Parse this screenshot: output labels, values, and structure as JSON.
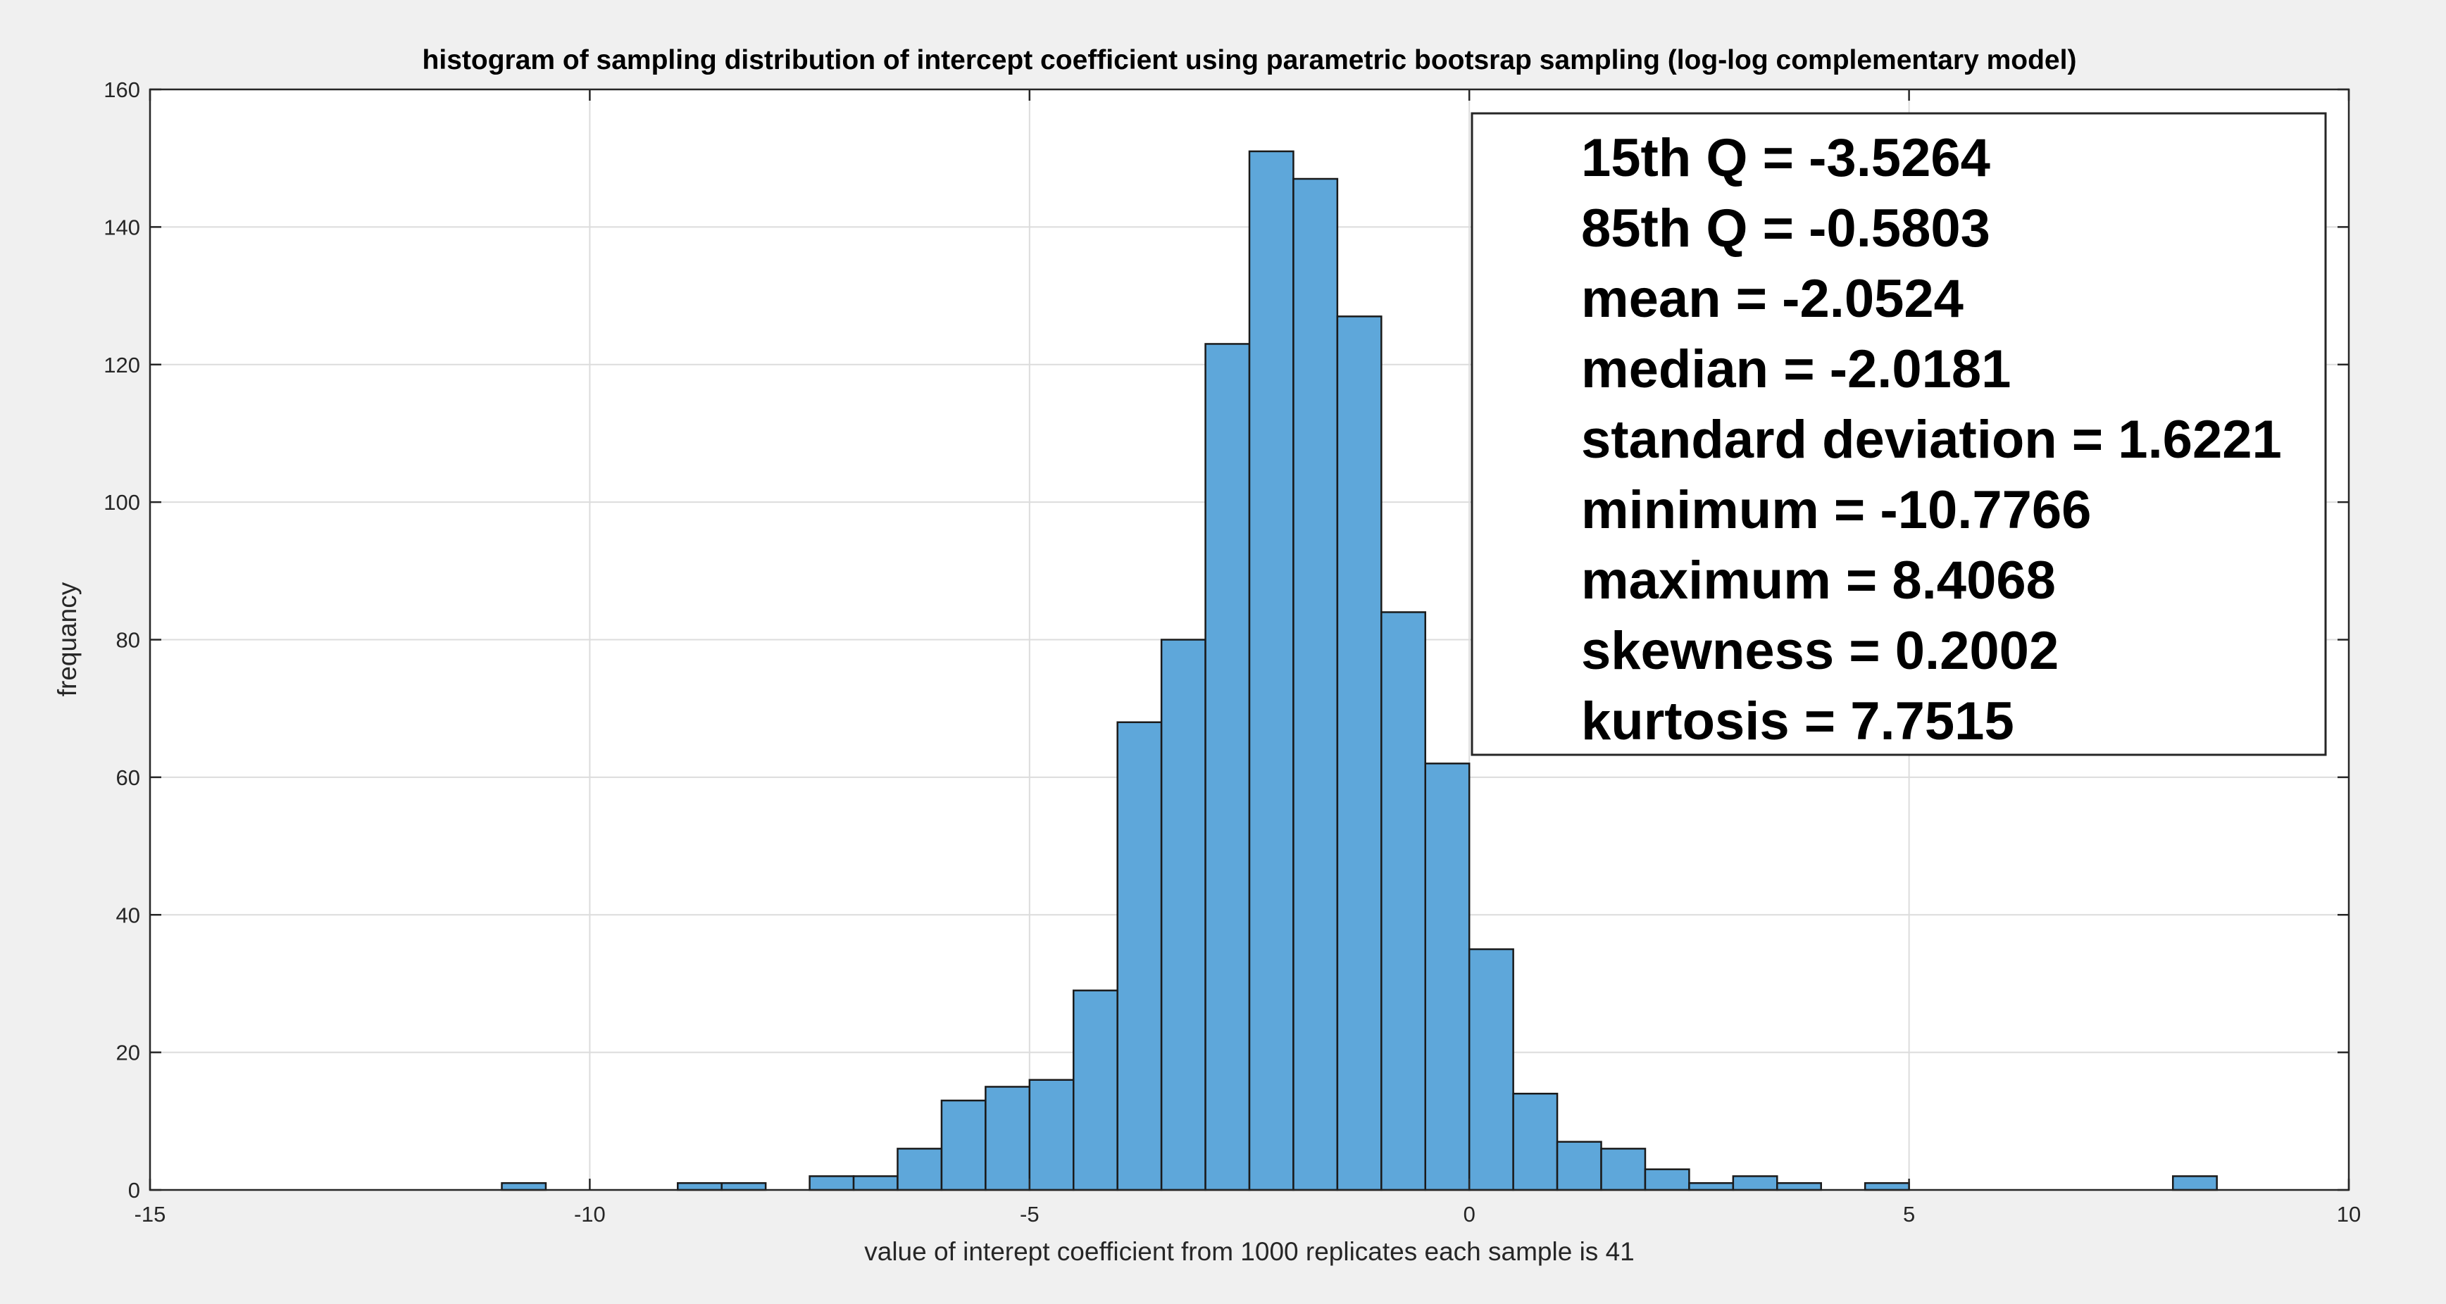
{
  "chart_data": {
    "type": "bar",
    "title": "histogram of sampling distribution of intercept coefficient using parametric bootsrap sampling (log-log complementary model)",
    "xlabel": "value of interept coefficient from 1000 replicates each sample is 41",
    "ylabel": "frequancy",
    "xlim": [
      -15,
      10
    ],
    "ylim": [
      0,
      160
    ],
    "grid": true,
    "bin_width": 0.5,
    "xticks": [
      -15,
      -10,
      -5,
      0,
      5,
      10
    ],
    "xtick_labels": [
      "-15",
      "-10",
      "-5",
      "0",
      "5",
      "10"
    ],
    "yticks": [
      0,
      20,
      40,
      60,
      80,
      100,
      120,
      140,
      160
    ],
    "ytick_labels": [
      "0",
      "20",
      "40",
      "60",
      "80",
      "100",
      "120",
      "140",
      "160"
    ],
    "bar_color": "#5ea7da",
    "edge_color": "#1a1a1a",
    "bins": [
      {
        "left": -11.0,
        "count": 1
      },
      {
        "left": -9.0,
        "count": 1
      },
      {
        "left": -8.5,
        "count": 1
      },
      {
        "left": -7.5,
        "count": 2
      },
      {
        "left": -7.0,
        "count": 2
      },
      {
        "left": -6.5,
        "count": 6
      },
      {
        "left": -6.0,
        "count": 13
      },
      {
        "left": -5.5,
        "count": 15
      },
      {
        "left": -5.0,
        "count": 16
      },
      {
        "left": -4.5,
        "count": 29
      },
      {
        "left": -4.0,
        "count": 68
      },
      {
        "left": -3.5,
        "count": 80
      },
      {
        "left": -3.0,
        "count": 123
      },
      {
        "left": -2.5,
        "count": 151
      },
      {
        "left": -2.0,
        "count": 147
      },
      {
        "left": -1.5,
        "count": 127
      },
      {
        "left": -1.0,
        "count": 84
      },
      {
        "left": -0.5,
        "count": 62
      },
      {
        "left": 0.0,
        "count": 35
      },
      {
        "left": 0.5,
        "count": 14
      },
      {
        "left": 1.0,
        "count": 7
      },
      {
        "left": 1.5,
        "count": 6
      },
      {
        "left": 2.0,
        "count": 3
      },
      {
        "left": 2.5,
        "count": 1
      },
      {
        "left": 3.0,
        "count": 2
      },
      {
        "left": 3.5,
        "count": 1
      },
      {
        "left": 4.5,
        "count": 1
      },
      {
        "left": 8.0,
        "count": 2
      }
    ],
    "annotation": {
      "lines": [
        "15th Q = -3.5264",
        "85th Q = -0.5803",
        "mean = -2.0524",
        "median = -2.0181",
        "standard deviation = 1.6221",
        "minimum = -10.7766",
        "maximum = 8.4068",
        "skewness = 0.2002",
        "kurtosis = 7.7515"
      ]
    }
  }
}
